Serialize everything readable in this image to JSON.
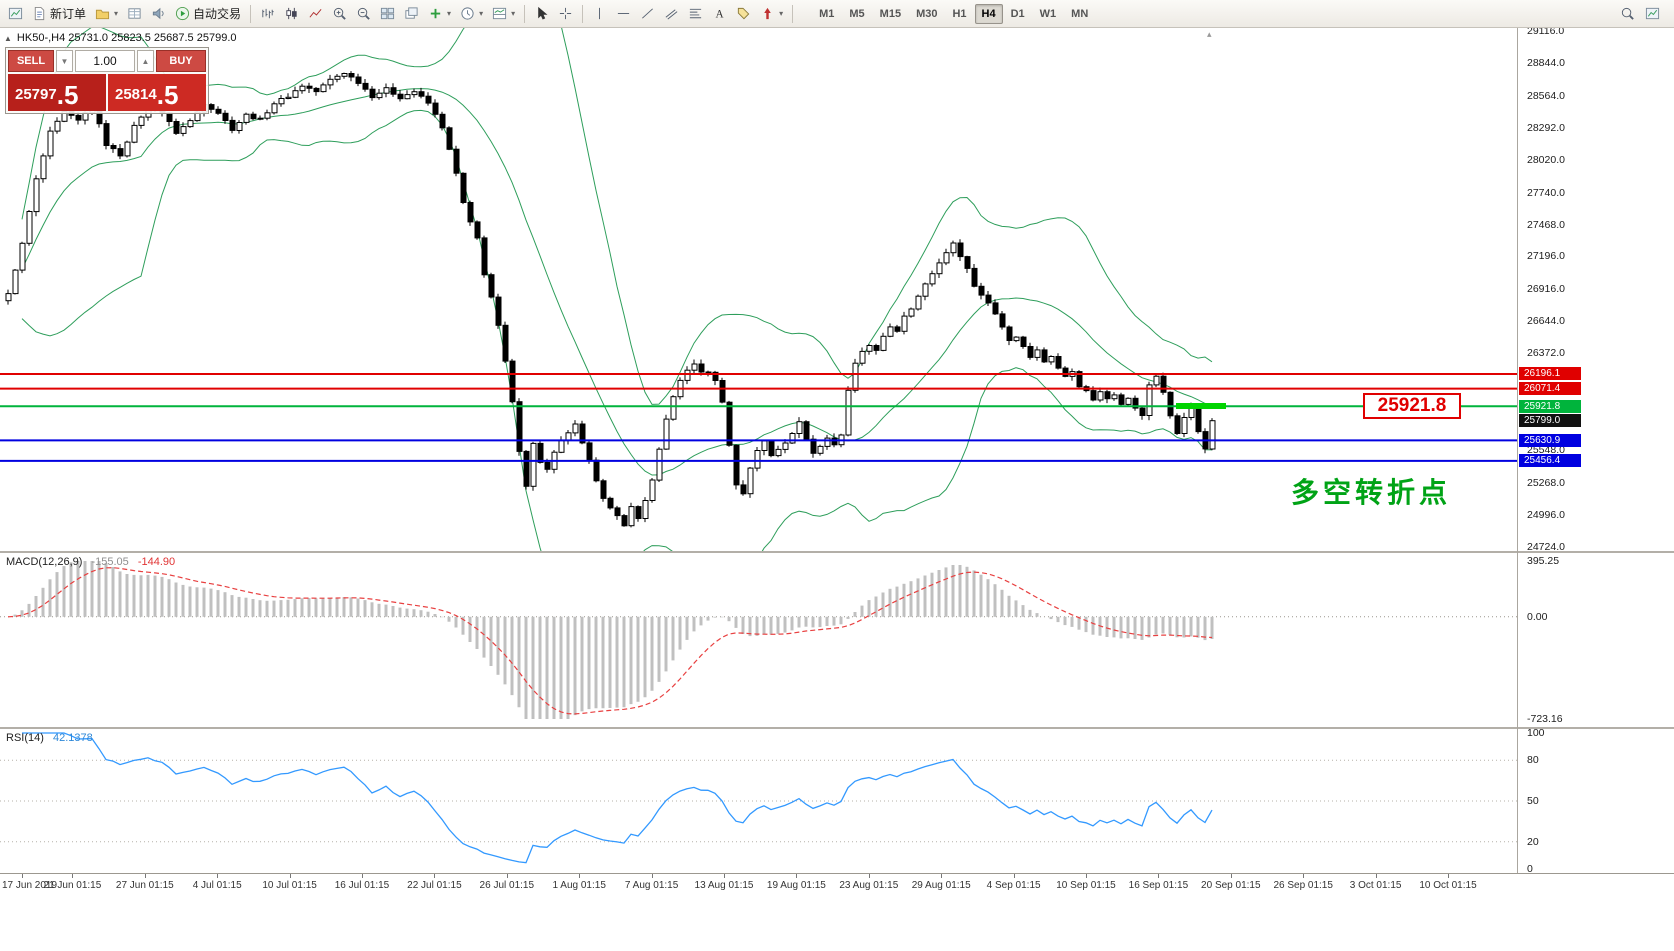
{
  "colors": {
    "accent_red": "#e00000",
    "accent_green": "#00b43c",
    "accent_blue": "#0000e0",
    "note_green": "#00a316",
    "panel_red_dark": "#b7201b",
    "panel_red": "#cd2a23"
  },
  "toolbar": {
    "new_order": "新订单",
    "autotrade": "自动交易",
    "timeframes": [
      "M1",
      "M5",
      "M15",
      "M30",
      "H1",
      "H4",
      "D1",
      "W1",
      "MN"
    ],
    "active_timeframe": "H4"
  },
  "symbol_header": "HK50-,H4  25731.0 25823.5 25687.5 25799.0",
  "trade_panel": {
    "sell_label": "SELL",
    "buy_label": "BUY",
    "volume": "1.00",
    "sell_price_main": "25797",
    "sell_price_frac": ".5",
    "buy_price_main": "25814",
    "buy_price_frac": ".5"
  },
  "annotations": {
    "price_callout": "25921.8",
    "callout_color": "#e00000",
    "note": "多空转折点",
    "note_color": "#00a316"
  },
  "chart_data": {
    "type": "candlestick",
    "symbol": "HK50-",
    "timeframe": "H4",
    "ohlc": {
      "open": 25731.0,
      "high": 25823.5,
      "low": 25687.5,
      "close": 25799.0
    },
    "price_axis": {
      "min": 24690,
      "max": 29140,
      "tick_labels": [
        "29116.0",
        "28844.0",
        "28564.0",
        "28292.0",
        "28020.0",
        "27740.0",
        "27468.0",
        "27196.0",
        "26916.0",
        "26644.0",
        "26372.0",
        "25548.0",
        "25268.0",
        "24996.0",
        "24724.0"
      ]
    },
    "levels": [
      {
        "price": 26196.1,
        "label": "26196.1",
        "color": "#e00000"
      },
      {
        "price": 26071.4,
        "label": "26071.4",
        "color": "#e00000"
      },
      {
        "price": 25921.8,
        "label": "25921.8",
        "color": "#00b43c"
      },
      {
        "price": 25630.9,
        "label": "25630.9",
        "color": "#0000e0"
      },
      {
        "price": 25456.4,
        "label": "25456.4",
        "color": "#0000e0"
      }
    ],
    "current_price": {
      "value": 25799.0,
      "label": "25799.0",
      "color": "#111111"
    },
    "bars": 173,
    "price_path": [
      [
        0,
        26880
      ],
      [
        2,
        27300
      ],
      [
        4,
        27850
      ],
      [
        6,
        28250
      ],
      [
        8,
        28420
      ],
      [
        10,
        28350
      ],
      [
        12,
        28480
      ],
      [
        14,
        28150
      ],
      [
        16,
        28060
      ],
      [
        18,
        28300
      ],
      [
        20,
        28480
      ],
      [
        22,
        28420
      ],
      [
        24,
        28250
      ],
      [
        26,
        28350
      ],
      [
        28,
        28500
      ],
      [
        30,
        28420
      ],
      [
        32,
        28280
      ],
      [
        34,
        28400
      ],
      [
        36,
        28360
      ],
      [
        38,
        28500
      ],
      [
        40,
        28560
      ],
      [
        42,
        28650
      ],
      [
        44,
        28600
      ],
      [
        46,
        28700
      ],
      [
        48,
        28760
      ],
      [
        50,
        28680
      ],
      [
        52,
        28560
      ],
      [
        54,
        28620
      ],
      [
        56,
        28550
      ],
      [
        58,
        28600
      ],
      [
        60,
        28500
      ],
      [
        62,
        28300
      ],
      [
        63,
        28100
      ],
      [
        64,
        27900
      ],
      [
        65,
        27650
      ],
      [
        66,
        27480
      ],
      [
        67,
        27350
      ],
      [
        68,
        27050
      ],
      [
        69,
        26850
      ],
      [
        70,
        26600
      ],
      [
        71,
        26300
      ],
      [
        72,
        25950
      ],
      [
        73,
        25550
      ],
      [
        74,
        25250
      ],
      [
        75,
        25600
      ],
      [
        76,
        25450
      ],
      [
        77,
        25380
      ],
      [
        78,
        25520
      ],
      [
        79,
        25620
      ],
      [
        80,
        25700
      ],
      [
        81,
        25760
      ],
      [
        82,
        25600
      ],
      [
        83,
        25450
      ],
      [
        84,
        25300
      ],
      [
        85,
        25150
      ],
      [
        86,
        25050
      ],
      [
        87,
        24980
      ],
      [
        88,
        24900
      ],
      [
        89,
        25080
      ],
      [
        90,
        24960
      ],
      [
        91,
        25120
      ],
      [
        92,
        25300
      ],
      [
        93,
        25550
      ],
      [
        94,
        25800
      ],
      [
        95,
        26000
      ],
      [
        96,
        26150
      ],
      [
        97,
        26220
      ],
      [
        98,
        26280
      ],
      [
        99,
        26220
      ],
      [
        100,
        26200
      ],
      [
        101,
        26150
      ],
      [
        102,
        25950
      ],
      [
        103,
        25600
      ],
      [
        104,
        25250
      ],
      [
        105,
        25180
      ],
      [
        106,
        25400
      ],
      [
        107,
        25550
      ],
      [
        108,
        25620
      ],
      [
        109,
        25500
      ],
      [
        110,
        25560
      ],
      [
        111,
        25620
      ],
      [
        112,
        25700
      ],
      [
        113,
        25780
      ],
      [
        114,
        25650
      ],
      [
        115,
        25520
      ],
      [
        116,
        25580
      ],
      [
        117,
        25650
      ],
      [
        118,
        25600
      ],
      [
        119,
        25680
      ],
      [
        120,
        26050
      ],
      [
        121,
        26300
      ],
      [
        122,
        26380
      ],
      [
        123,
        26450
      ],
      [
        124,
        26400
      ],
      [
        125,
        26520
      ],
      [
        126,
        26600
      ],
      [
        127,
        26550
      ],
      [
        128,
        26680
      ],
      [
        129,
        26750
      ],
      [
        130,
        26850
      ],
      [
        131,
        26950
      ],
      [
        132,
        27050
      ],
      [
        133,
        27150
      ],
      [
        134,
        27220
      ],
      [
        135,
        27300
      ],
      [
        136,
        27200
      ],
      [
        137,
        27100
      ],
      [
        138,
        26950
      ],
      [
        139,
        26880
      ],
      [
        140,
        26800
      ],
      [
        141,
        26700
      ],
      [
        142,
        26600
      ],
      [
        143,
        26480
      ],
      [
        144,
        26520
      ],
      [
        145,
        26420
      ],
      [
        146,
        26350
      ],
      [
        147,
        26400
      ],
      [
        148,
        26300
      ],
      [
        149,
        26350
      ],
      [
        150,
        26250
      ],
      [
        151,
        26180
      ],
      [
        152,
        26220
      ],
      [
        153,
        26100
      ],
      [
        154,
        26050
      ],
      [
        155,
        25980
      ],
      [
        156,
        26050
      ],
      [
        157,
        25980
      ],
      [
        158,
        26020
      ],
      [
        159,
        25950
      ],
      [
        160,
        26000
      ],
      [
        161,
        25900
      ],
      [
        162,
        25850
      ],
      [
        163,
        26100
      ],
      [
        164,
        26180
      ],
      [
        165,
        26050
      ],
      [
        166,
        25850
      ],
      [
        167,
        25700
      ],
      [
        168,
        25820
      ],
      [
        169,
        25920
      ],
      [
        170,
        25700
      ],
      [
        171,
        25560
      ],
      [
        172,
        25799
      ]
    ],
    "indicators": {
      "bollinger": {
        "period": 20,
        "color": "#2e9e5b"
      },
      "macd": {
        "label": "MACD(12,26,9)",
        "value": "-155.05",
        "signal_value": "-144.90",
        "axis_labels": [
          "395.25",
          "0.00",
          "-723.16"
        ],
        "range": [
          395.25,
          -723.16
        ],
        "histogram_color": "#c0c0c0",
        "signal_color": "#e84040"
      },
      "rsi": {
        "label": "RSI(14)",
        "value": "42.1378",
        "axis_labels": [
          "100",
          "80",
          "50",
          "20",
          "0"
        ],
        "levels": [
          80,
          50,
          20
        ],
        "color": "#3399ff"
      }
    },
    "time_axis": [
      "17 Jun 2019",
      "21 Jun 01:15",
      "27 Jun 01:15",
      "4 Jul 01:15",
      "10 Jul 01:15",
      "16 Jul 01:15",
      "22 Jul 01:15",
      "26 Jul 01:15",
      "1 Aug 01:15",
      "7 Aug 01:15",
      "13 Aug 01:15",
      "19 Aug 01:15",
      "23 Aug 01:15",
      "29 Aug 01:15",
      "4 Sep 01:15",
      "10 Sep 01:15",
      "16 Sep 01:15",
      "20 Sep 01:15",
      "26 Sep 01:15",
      "3 Oct 01:15",
      "10 Oct 01:15"
    ]
  }
}
